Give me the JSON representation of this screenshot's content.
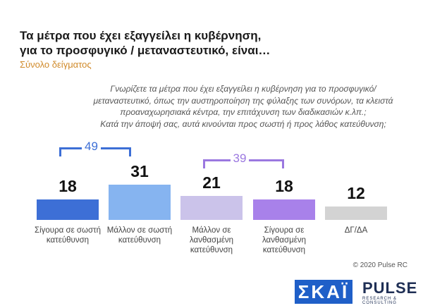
{
  "chart_data": {
    "type": "bar",
    "title": [
      "Τα μέτρα που έχει εξαγγείλει η κυβέρνηση,",
      "για το προσφυγικό / μεταναστευτικό, είναι…"
    ],
    "subtitle": "Σύνολο δείγματος",
    "question": [
      "Γνωρίζετε τα μέτρα που έχει εξαγγείλει η κυβέρνηση για το προσφυγικό/",
      "μεταναστευτικό, όπως την αυστηροποίηση της φύλαξης των συνόρων, τα κλειστά",
      "προαναχωρησιακά κέντρα, την επιτάχυνση των διαδικασιών κ.λπ.;",
      "Κατά την άποψή σας, αυτά κινούνται προς σωστή ή προς λάθος κατεύθυνση;"
    ],
    "categories": [
      "Σίγουρα σε σωστή κατεύθυνση",
      "Μάλλον σε σωστή κατεύθυνση",
      "Μάλλον σε λανθασμένη κατεύθυνση",
      "Σίγουρα σε λανθασμένη κατεύθυνση",
      "ΔΓ/ΔΑ"
    ],
    "values": [
      18,
      31,
      21,
      18,
      12
    ],
    "colors": [
      "#3d6fd6",
      "#86b4f0",
      "#cbc3ea",
      "#a881ea",
      "#d3d3d3"
    ],
    "sums": [
      {
        "value": 49,
        "color": "#3d6fd6"
      },
      {
        "value": 39,
        "color": "#9b78e0"
      }
    ],
    "source": "© 2020 Pulse RC"
  },
  "logos": [
    "ΣΚΑΪ",
    "PULSE",
    "RESEARCH & CONSULTING"
  ]
}
